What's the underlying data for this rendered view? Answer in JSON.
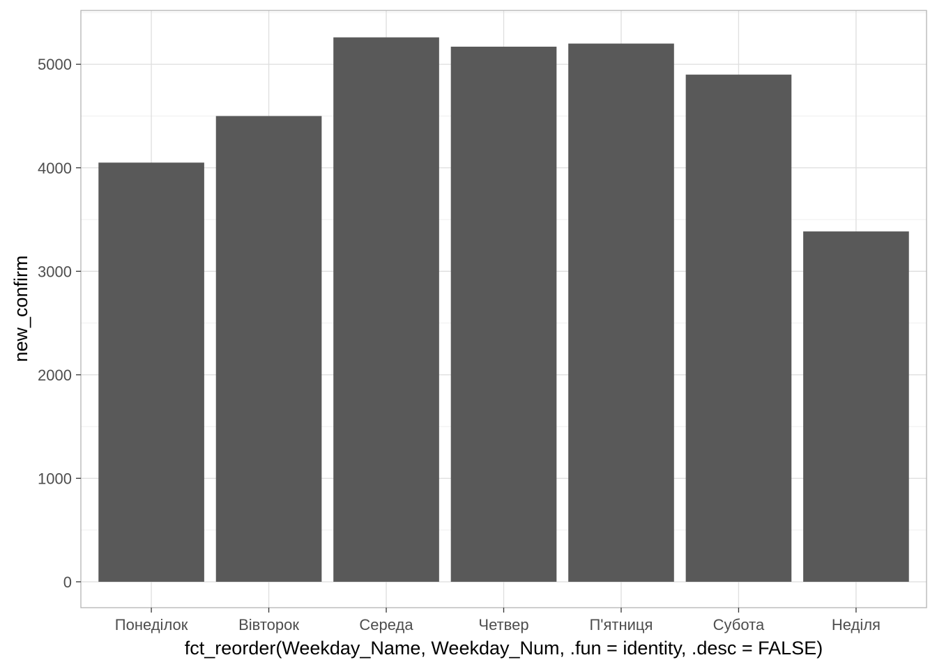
{
  "chart_data": {
    "type": "bar",
    "categories": [
      "Понеділок",
      "Вівторок",
      "Середа",
      "Четвер",
      "П'ятниця",
      "Субота",
      "Неділя"
    ],
    "values": [
      4050,
      4500,
      5260,
      5170,
      5200,
      4900,
      3385
    ],
    "xlabel": "fct_reorder(Weekday_Name, Weekday_Num, .fun = identity, .desc = FALSE)",
    "ylabel": "new_confirm",
    "ylim": [
      -250,
      5520
    ],
    "yticks": [
      0,
      1000,
      2000,
      3000,
      4000,
      5000
    ],
    "grid": true,
    "colors": {
      "bar": "#595959",
      "grid_major": "#dedede",
      "grid_minor": "#efefef",
      "panel_border": "#b3b3b3"
    }
  }
}
